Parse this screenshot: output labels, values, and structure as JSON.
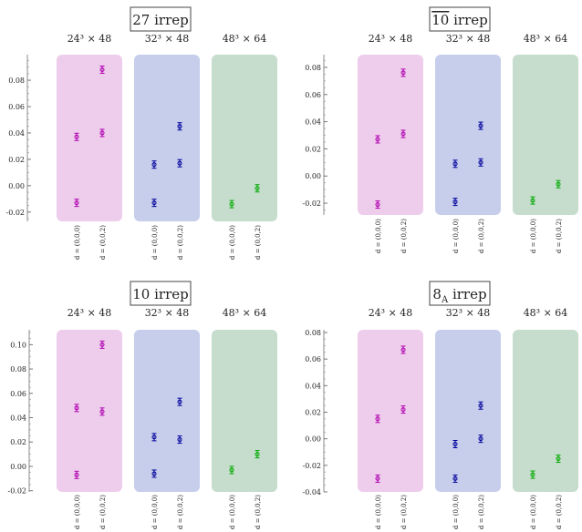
{
  "figure": {
    "lattice_labels": [
      "24³ × 48",
      "32³ × 48",
      "48³ × 64"
    ],
    "frame_labels": [
      "d = (0,0,0)",
      "d = (0,0,2)"
    ],
    "group_colors": [
      "#e8bce6",
      "#b3bde6",
      "#b3d0bc"
    ],
    "point_colors": [
      "#b000b0",
      "#00009a",
      "#00aa00"
    ]
  },
  "chart_data": [
    {
      "type": "scatter",
      "title": "27 irrep",
      "ylim": [
        -0.025,
        0.098
      ],
      "yticks": [
        "-0.02",
        "0.00",
        "0.02",
        "0.04",
        "0.06",
        "0.08"
      ],
      "groups": [
        {
          "label": "24³ × 48",
          "points": [
            {
              "frame": "d = (0,0,0)",
              "values": [
                -0.013,
                0.037
              ]
            },
            {
              "frame": "d = (0,0,2)",
              "values": [
                0.04,
                0.088
              ]
            }
          ]
        },
        {
          "label": "32³ × 48",
          "points": [
            {
              "frame": "d = (0,0,0)",
              "values": [
                -0.013,
                0.016
              ]
            },
            {
              "frame": "d = (0,0,2)",
              "values": [
                0.017,
                0.045
              ]
            }
          ]
        },
        {
          "label": "48³ × 64",
          "points": [
            {
              "frame": "d = (0,0,0)",
              "values": [
                -0.014
              ]
            },
            {
              "frame": "d = (0,0,2)",
              "values": [
                -0.002
              ]
            }
          ]
        }
      ]
    },
    {
      "type": "scatter",
      "title": "10̅ irrep",
      "title_main": "10",
      "title_suffix": " irrep",
      "title_overline": true,
      "ylim": [
        -0.028,
        0.088
      ],
      "yticks": [
        "-0.02",
        "0.00",
        "0.02",
        "0.04",
        "0.06",
        "0.08"
      ],
      "groups": [
        {
          "label": "24³ × 48",
          "points": [
            {
              "frame": "d = (0,0,0)",
              "values": [
                -0.021,
                0.027
              ]
            },
            {
              "frame": "d = (0,0,2)",
              "values": [
                0.031,
                0.076
              ]
            }
          ]
        },
        {
          "label": "32³ × 48",
          "points": [
            {
              "frame": "d = (0,0,0)",
              "values": [
                -0.019,
                0.009
              ]
            },
            {
              "frame": "d = (0,0,2)",
              "values": [
                0.01,
                0.037
              ]
            }
          ]
        },
        {
          "label": "48³ × 64",
          "points": [
            {
              "frame": "d = (0,0,0)",
              "values": [
                -0.018
              ]
            },
            {
              "frame": "d = (0,0,2)",
              "values": [
                -0.006
              ]
            }
          ]
        }
      ]
    },
    {
      "type": "scatter",
      "title": "10 irrep",
      "ylim": [
        -0.021,
        0.11
      ],
      "yticks": [
        "-0.02",
        "0.00",
        "0.02",
        "0.04",
        "0.06",
        "0.08",
        "0.10"
      ],
      "groups": [
        {
          "label": "24³ × 48",
          "points": [
            {
              "frame": "d = (0,0,0)",
              "values": [
                -0.007,
                0.048
              ]
            },
            {
              "frame": "d = (0,0,2)",
              "values": [
                0.045,
                0.1
              ]
            }
          ]
        },
        {
          "label": "32³ × 48",
          "points": [
            {
              "frame": "d = (0,0,0)",
              "values": [
                -0.006,
                0.024
              ]
            },
            {
              "frame": "d = (0,0,2)",
              "values": [
                0.022,
                0.053
              ]
            }
          ]
        },
        {
          "label": "48³ × 64",
          "points": [
            {
              "frame": "d = (0,0,0)",
              "values": [
                -0.003
              ]
            },
            {
              "frame": "d = (0,0,2)",
              "values": [
                0.01
              ]
            }
          ]
        }
      ]
    },
    {
      "type": "scatter",
      "title": "8_A irrep",
      "title_main": "8",
      "title_sub": "A",
      "title_suffix": " irrep",
      "ylim": [
        -0.04,
        0.08
      ],
      "yticks": [
        "-0.04",
        "-0.02",
        "0.00",
        "0.02",
        "0.04",
        "0.06",
        "0.08"
      ],
      "groups": [
        {
          "label": "24³ × 48",
          "points": [
            {
              "frame": "d = (0,0,0)",
              "values": [
                -0.03,
                0.015
              ]
            },
            {
              "frame": "d = (0,0,2)",
              "values": [
                0.022,
                0.067
              ]
            }
          ]
        },
        {
          "label": "32³ × 48",
          "points": [
            {
              "frame": "d = (0,0,0)",
              "values": [
                -0.03,
                -0.004
              ]
            },
            {
              "frame": "d = (0,0,2)",
              "values": [
                0.0,
                0.025
              ]
            }
          ]
        },
        {
          "label": "48³ × 64",
          "points": [
            {
              "frame": "d = (0,0,0)",
              "values": [
                -0.027
              ]
            },
            {
              "frame": "d = (0,0,2)",
              "values": [
                -0.015
              ]
            }
          ]
        }
      ]
    }
  ]
}
